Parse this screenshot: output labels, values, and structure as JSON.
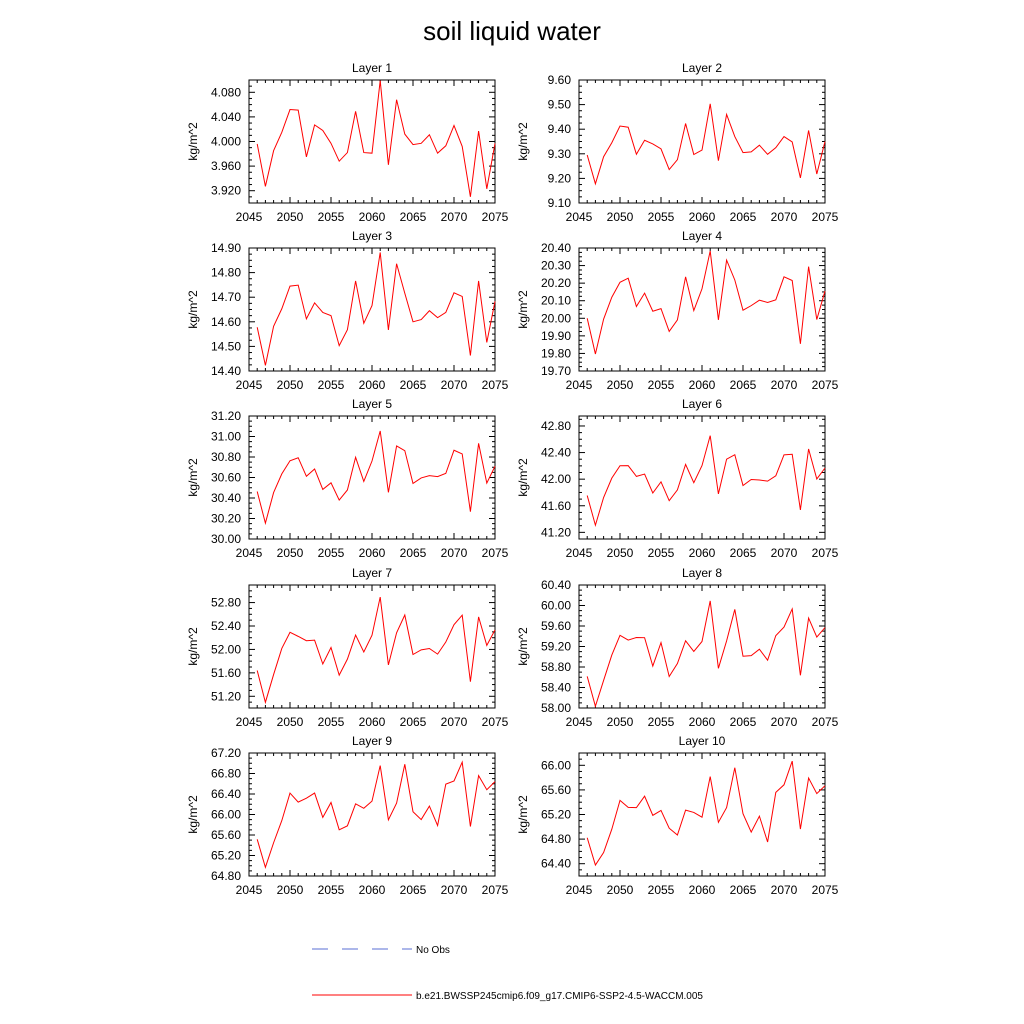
{
  "figure": {
    "title": "soil liquid water",
    "legend": [
      {
        "label": "No Obs",
        "color": "#5a6fd6",
        "dash": "dashed"
      },
      {
        "label": "b.e21.BWSSP245cmip6.f09_g17.CMIP6-SSP2-4.5-WACCM.005",
        "color": "#ff0000",
        "dash": "solid"
      }
    ]
  },
  "chart_data": [
    {
      "type": "line",
      "title": "Layer 1",
      "ylabel": "kg/m^2",
      "xlim": [
        2045,
        2075
      ],
      "ylim": [
        3.9,
        4.1
      ],
      "xticks": [
        2045,
        2050,
        2055,
        2060,
        2065,
        2070,
        2075
      ],
      "yticks": [
        "3.920",
        "3.960",
        "4.000",
        "4.040",
        "4.080"
      ],
      "ytick_values": [
        3.92,
        3.96,
        4.0,
        4.04,
        4.08
      ],
      "x": [
        2046,
        2047,
        2048,
        2049,
        2050,
        2051,
        2052,
        2053,
        2054,
        2055,
        2056,
        2057,
        2058,
        2059,
        2060,
        2061,
        2062,
        2063,
        2064,
        2065,
        2066,
        2067,
        2068,
        2069,
        2070,
        2071,
        2072,
        2073,
        2074,
        2075
      ],
      "series": [
        {
          "color": "#ff0000",
          "values": [
            3.996,
            3.927,
            3.985,
            4.015,
            4.052,
            4.051,
            3.975,
            4.027,
            4.018,
            3.997,
            3.968,
            3.982,
            4.049,
            3.982,
            3.981,
            4.099,
            3.962,
            4.068,
            4.012,
            3.995,
            3.997,
            4.011,
            3.981,
            3.993,
            4.026,
            3.992,
            3.91,
            4.017,
            3.923,
            3.997
          ]
        }
      ]
    },
    {
      "type": "line",
      "title": "Layer 2",
      "ylabel": "kg/m^2",
      "xlim": [
        2045,
        2075
      ],
      "ylim": [
        9.1,
        9.6
      ],
      "xticks": [
        2045,
        2050,
        2055,
        2060,
        2065,
        2070,
        2075
      ],
      "yticks": [
        "9.10",
        "9.20",
        "9.30",
        "9.40",
        "9.50",
        "9.60"
      ],
      "ytick_values": [
        9.1,
        9.2,
        9.3,
        9.4,
        9.5,
        9.6
      ],
      "x": [
        2046,
        2047,
        2048,
        2049,
        2050,
        2051,
        2052,
        2053,
        2054,
        2055,
        2056,
        2057,
        2058,
        2059,
        2060,
        2061,
        2062,
        2063,
        2064,
        2065,
        2066,
        2067,
        2068,
        2069,
        2070,
        2071,
        2072,
        2073,
        2074,
        2075
      ],
      "series": [
        {
          "color": "#ff0000",
          "values": [
            9.295,
            9.178,
            9.288,
            9.345,
            9.413,
            9.408,
            9.298,
            9.355,
            9.34,
            9.32,
            9.236,
            9.276,
            9.423,
            9.297,
            9.315,
            9.503,
            9.272,
            9.46,
            9.37,
            9.305,
            9.308,
            9.335,
            9.298,
            9.325,
            9.37,
            9.348,
            9.202,
            9.395,
            9.218,
            9.35
          ]
        }
      ]
    },
    {
      "type": "line",
      "title": "Layer 3",
      "ylabel": "kg/m^2",
      "xlim": [
        2045,
        2075
      ],
      "ylim": [
        14.4,
        14.9
      ],
      "xticks": [
        2045,
        2050,
        2055,
        2060,
        2065,
        2070,
        2075
      ],
      "yticks": [
        "14.40",
        "14.50",
        "14.60",
        "14.70",
        "14.80",
        "14.90"
      ],
      "ytick_values": [
        14.4,
        14.5,
        14.6,
        14.7,
        14.8,
        14.9
      ],
      "x": [
        2046,
        2047,
        2048,
        2049,
        2050,
        2051,
        2052,
        2053,
        2054,
        2055,
        2056,
        2057,
        2058,
        2059,
        2060,
        2061,
        2062,
        2063,
        2064,
        2065,
        2066,
        2067,
        2068,
        2069,
        2070,
        2071,
        2072,
        2073,
        2074,
        2075
      ],
      "series": [
        {
          "color": "#ff0000",
          "values": [
            14.578,
            14.423,
            14.582,
            14.653,
            14.745,
            14.749,
            14.612,
            14.677,
            14.638,
            14.625,
            14.503,
            14.568,
            14.766,
            14.594,
            14.666,
            14.882,
            14.567,
            14.836,
            14.716,
            14.6,
            14.609,
            14.645,
            14.617,
            14.638,
            14.718,
            14.703,
            14.463,
            14.766,
            14.516,
            14.683
          ]
        }
      ]
    },
    {
      "type": "line",
      "title": "Layer 4",
      "ylabel": "kg/m^2",
      "xlim": [
        2045,
        2075
      ],
      "ylim": [
        19.7,
        20.4
      ],
      "xticks": [
        2045,
        2050,
        2055,
        2060,
        2065,
        2070,
        2075
      ],
      "yticks": [
        "19.70",
        "19.80",
        "19.90",
        "20.00",
        "20.10",
        "20.20",
        "20.30",
        "20.40"
      ],
      "ytick_values": [
        19.7,
        19.8,
        19.9,
        20.0,
        20.1,
        20.2,
        20.3,
        20.4
      ],
      "x": [
        2046,
        2047,
        2048,
        2049,
        2050,
        2051,
        2052,
        2053,
        2054,
        2055,
        2056,
        2057,
        2058,
        2059,
        2060,
        2061,
        2062,
        2063,
        2064,
        2065,
        2066,
        2067,
        2068,
        2069,
        2070,
        2071,
        2072,
        2073,
        2074,
        2075
      ],
      "series": [
        {
          "color": "#ff0000",
          "values": [
            20.0,
            19.797,
            19.995,
            20.12,
            20.205,
            20.228,
            20.067,
            20.143,
            20.04,
            20.055,
            19.925,
            19.991,
            20.236,
            20.044,
            20.168,
            20.383,
            19.991,
            20.331,
            20.218,
            20.046,
            20.072,
            20.103,
            20.09,
            20.105,
            20.236,
            20.215,
            19.855,
            20.294,
            19.993,
            20.155
          ]
        }
      ]
    },
    {
      "type": "line",
      "title": "Layer 5",
      "ylabel": "kg/m^2",
      "xlim": [
        2045,
        2075
      ],
      "ylim": [
        30.0,
        31.2
      ],
      "xticks": [
        2045,
        2050,
        2055,
        2060,
        2065,
        2070,
        2075
      ],
      "yticks": [
        "30.00",
        "30.20",
        "30.40",
        "30.60",
        "30.80",
        "31.00",
        "31.20"
      ],
      "ytick_values": [
        30.0,
        30.2,
        30.4,
        30.6,
        30.8,
        31.0,
        31.2
      ],
      "x": [
        2046,
        2047,
        2048,
        2049,
        2050,
        2051,
        2052,
        2053,
        2054,
        2055,
        2056,
        2057,
        2058,
        2059,
        2060,
        2061,
        2062,
        2063,
        2064,
        2065,
        2066,
        2067,
        2068,
        2069,
        2070,
        2071,
        2072,
        2073,
        2074,
        2075
      ],
      "series": [
        {
          "color": "#ff0000",
          "values": [
            30.463,
            30.155,
            30.453,
            30.635,
            30.763,
            30.793,
            30.612,
            30.683,
            30.484,
            30.548,
            30.38,
            30.478,
            30.797,
            30.562,
            30.761,
            31.054,
            30.455,
            30.908,
            30.862,
            30.542,
            30.596,
            30.618,
            30.609,
            30.64,
            30.866,
            30.83,
            30.267,
            30.933,
            30.546,
            30.71
          ]
        }
      ]
    },
    {
      "type": "line",
      "title": "Layer 6",
      "ylabel": "kg/m^2",
      "xlim": [
        2045,
        2075
      ],
      "ylim": [
        41.1,
        42.95
      ],
      "xticks": [
        2045,
        2050,
        2055,
        2060,
        2065,
        2070,
        2075
      ],
      "yticks": [
        "41.20",
        "41.60",
        "42.00",
        "42.40",
        "42.80"
      ],
      "ytick_values": [
        41.2,
        41.6,
        42.0,
        42.4,
        42.8
      ],
      "x": [
        2046,
        2047,
        2048,
        2049,
        2050,
        2051,
        2052,
        2053,
        2054,
        2055,
        2056,
        2057,
        2058,
        2059,
        2060,
        2061,
        2062,
        2063,
        2064,
        2065,
        2066,
        2067,
        2068,
        2069,
        2070,
        2071,
        2072,
        2073,
        2074,
        2075
      ],
      "series": [
        {
          "color": "#ff0000",
          "values": [
            41.755,
            41.307,
            41.724,
            42.015,
            42.202,
            42.203,
            42.042,
            42.077,
            41.792,
            41.96,
            41.677,
            41.838,
            42.222,
            41.947,
            42.204,
            42.654,
            41.778,
            42.301,
            42.368,
            41.905,
            41.995,
            41.988,
            41.97,
            42.051,
            42.366,
            42.375,
            41.538,
            42.454,
            42.003,
            42.168
          ]
        }
      ]
    },
    {
      "type": "line",
      "title": "Layer 7",
      "ylabel": "kg/m^2",
      "xlim": [
        2045,
        2075
      ],
      "ylim": [
        51.0,
        53.1
      ],
      "xticks": [
        2045,
        2050,
        2055,
        2060,
        2065,
        2070,
        2075
      ],
      "yticks": [
        "51.20",
        "51.60",
        "52.00",
        "52.40",
        "52.80"
      ],
      "ytick_values": [
        51.2,
        51.6,
        52.0,
        52.4,
        52.8
      ],
      "x": [
        2046,
        2047,
        2048,
        2049,
        2050,
        2051,
        2052,
        2053,
        2054,
        2055,
        2056,
        2057,
        2058,
        2059,
        2060,
        2061,
        2062,
        2063,
        2064,
        2065,
        2066,
        2067,
        2068,
        2069,
        2070,
        2071,
        2072,
        2073,
        2074,
        2075
      ],
      "series": [
        {
          "color": "#ff0000",
          "values": [
            51.64,
            51.097,
            51.571,
            52.017,
            52.292,
            52.223,
            52.149,
            52.158,
            51.751,
            52.033,
            51.561,
            51.834,
            52.245,
            51.957,
            52.242,
            52.894,
            51.736,
            52.285,
            52.588,
            51.913,
            51.993,
            52.016,
            51.92,
            52.126,
            52.423,
            52.584,
            51.45,
            52.555,
            52.069,
            52.332
          ]
        }
      ]
    },
    {
      "type": "line",
      "title": "Layer 8",
      "ylabel": "kg/m^2",
      "xlim": [
        2045,
        2075
      ],
      "ylim": [
        58.0,
        60.4
      ],
      "xticks": [
        2045,
        2050,
        2055,
        2060,
        2065,
        2070,
        2075
      ],
      "yticks": [
        "58.00",
        "58.40",
        "58.80",
        "59.20",
        "59.60",
        "60.00",
        "60.40"
      ],
      "ytick_values": [
        58.0,
        58.4,
        58.8,
        59.2,
        59.6,
        60.0,
        60.4
      ],
      "x": [
        2046,
        2047,
        2048,
        2049,
        2050,
        2051,
        2052,
        2053,
        2054,
        2055,
        2056,
        2057,
        2058,
        2059,
        2060,
        2061,
        2062,
        2063,
        2064,
        2065,
        2066,
        2067,
        2068,
        2069,
        2070,
        2071,
        2072,
        2073,
        2074,
        2075
      ],
      "series": [
        {
          "color": "#ff0000",
          "values": [
            58.618,
            58.034,
            58.538,
            59.032,
            59.418,
            59.325,
            59.376,
            59.372,
            58.818,
            59.276,
            58.614,
            58.867,
            59.312,
            59.103,
            59.298,
            60.09,
            58.774,
            59.309,
            59.924,
            59.011,
            59.022,
            59.147,
            58.932,
            59.412,
            59.578,
            59.933,
            58.637,
            59.754,
            59.384,
            59.569
          ]
        }
      ]
    },
    {
      "type": "line",
      "title": "Layer 9",
      "ylabel": "kg/m^2",
      "xlim": [
        2045,
        2075
      ],
      "ylim": [
        64.8,
        67.2
      ],
      "xticks": [
        2045,
        2050,
        2055,
        2060,
        2065,
        2070,
        2075
      ],
      "yticks": [
        "64.80",
        "65.20",
        "65.60",
        "66.00",
        "66.40",
        "66.80",
        "67.20"
      ],
      "ytick_values": [
        64.8,
        65.2,
        65.6,
        66.0,
        66.4,
        66.8,
        67.2
      ],
      "x": [
        2046,
        2047,
        2048,
        2049,
        2050,
        2051,
        2052,
        2053,
        2054,
        2055,
        2056,
        2057,
        2058,
        2059,
        2060,
        2061,
        2062,
        2063,
        2064,
        2065,
        2066,
        2067,
        2068,
        2069,
        2070,
        2071,
        2072,
        2073,
        2074,
        2075
      ],
      "series": [
        {
          "color": "#ff0000",
          "values": [
            65.516,
            64.969,
            65.449,
            65.881,
            66.418,
            66.242,
            66.319,
            66.419,
            65.943,
            66.235,
            65.702,
            65.779,
            66.209,
            66.121,
            66.261,
            66.955,
            65.895,
            66.223,
            66.98,
            66.054,
            65.901,
            66.164,
            65.784,
            66.592,
            66.655,
            67.021,
            65.766,
            66.759,
            66.483,
            66.642
          ]
        }
      ]
    },
    {
      "type": "line",
      "title": "Layer 10",
      "ylabel": "kg/m^2",
      "xlim": [
        2045,
        2075
      ],
      "ylim": [
        64.2,
        66.2
      ],
      "xticks": [
        2045,
        2050,
        2055,
        2060,
        2065,
        2070,
        2075
      ],
      "yticks": [
        "64.40",
        "64.80",
        "65.20",
        "65.60",
        "66.00"
      ],
      "ytick_values": [
        64.4,
        64.8,
        65.2,
        65.6,
        66.0
      ],
      "x": [
        2046,
        2047,
        2048,
        2049,
        2050,
        2051,
        2052,
        2053,
        2054,
        2055,
        2056,
        2057,
        2058,
        2059,
        2060,
        2061,
        2062,
        2063,
        2064,
        2065,
        2066,
        2067,
        2068,
        2069,
        2070,
        2071,
        2072,
        2073,
        2074,
        2075
      ],
      "series": [
        {
          "color": "#ff0000",
          "values": [
            64.822,
            64.378,
            64.581,
            64.961,
            65.43,
            65.316,
            65.312,
            65.498,
            65.186,
            65.266,
            64.977,
            64.866,
            65.271,
            65.234,
            65.156,
            65.817,
            65.073,
            65.312,
            65.961,
            65.212,
            64.914,
            65.173,
            64.753,
            65.559,
            65.683,
            66.068,
            64.963,
            65.793,
            65.54,
            65.667
          ]
        }
      ]
    }
  ]
}
